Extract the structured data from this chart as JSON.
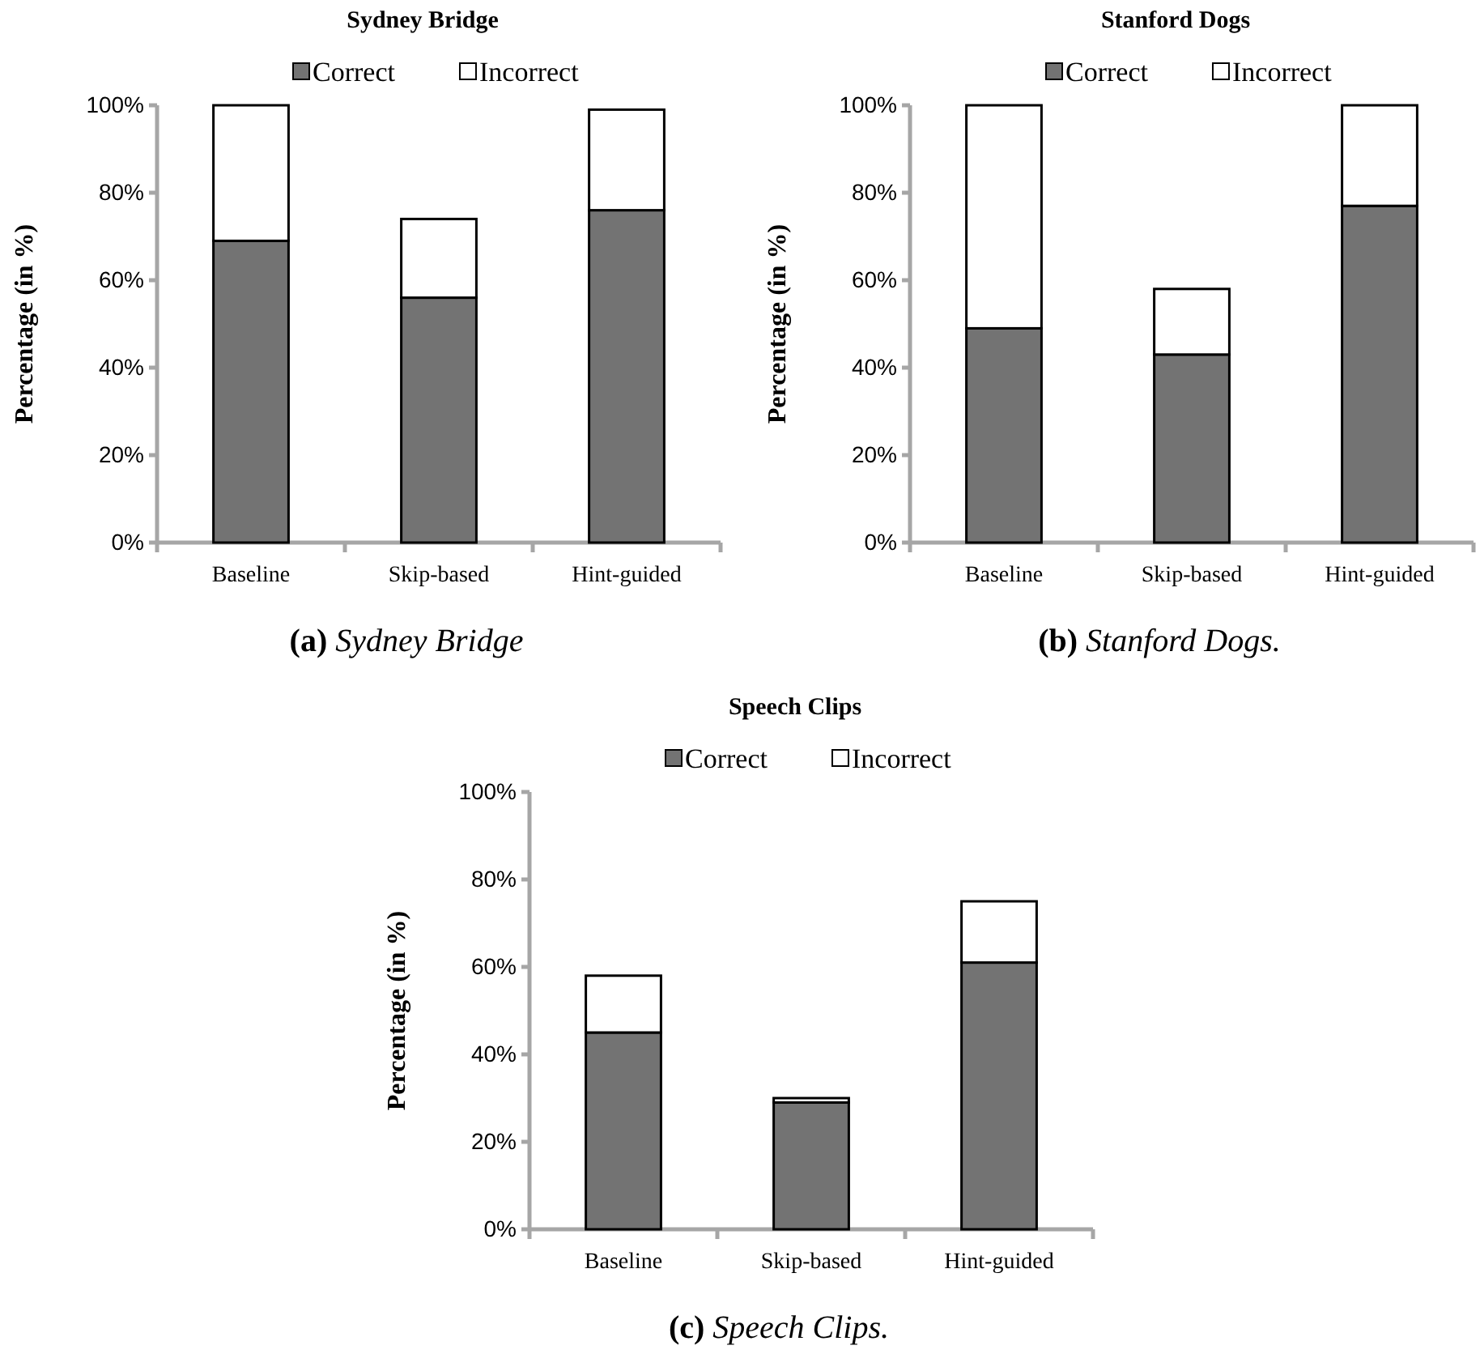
{
  "chart_data": [
    {
      "type": "bar",
      "title": "Sydney Bridge",
      "ylabel": "Percentage (in %)",
      "categories": [
        "Baseline",
        "Skip-based",
        "Hint-guided"
      ],
      "stacked": true,
      "legend": "top",
      "ylim": [
        0,
        100
      ],
      "yticks": [
        {
          "value": 0,
          "label": "0%"
        },
        {
          "value": 20,
          "label": "20%"
        },
        {
          "value": 40,
          "label": "40%"
        },
        {
          "value": 60,
          "label": "60%"
        },
        {
          "value": 80,
          "label": "80%"
        },
        {
          "value": 100,
          "label": "100%"
        }
      ],
      "series": [
        {
          "name": "Correct",
          "color": "#737373",
          "values": [
            69,
            56,
            76
          ]
        },
        {
          "name": "Incorrect",
          "color": "#ffffff",
          "values": [
            31,
            18,
            23
          ]
        }
      ],
      "annotations": [
        "(a) Sydney Bridge"
      ]
    },
    {
      "type": "bar",
      "title": "Stanford Dogs",
      "ylabel": "Percentage (in %)",
      "categories": [
        "Baseline",
        "Skip-based",
        "Hint-guided"
      ],
      "stacked": true,
      "legend": "top",
      "ylim": [
        0,
        100
      ],
      "yticks": [
        {
          "value": 0,
          "label": "0%"
        },
        {
          "value": 20,
          "label": "20%"
        },
        {
          "value": 40,
          "label": "40%"
        },
        {
          "value": 60,
          "label": "60%"
        },
        {
          "value": 80,
          "label": "80%"
        },
        {
          "value": 100,
          "label": "100%"
        }
      ],
      "series": [
        {
          "name": "Correct",
          "color": "#737373",
          "values": [
            49,
            43,
            77
          ]
        },
        {
          "name": "Incorrect",
          "color": "#ffffff",
          "values": [
            51,
            15,
            23
          ]
        }
      ],
      "annotations": [
        "(b) Stanford Dogs."
      ]
    },
    {
      "type": "bar",
      "title": "Speech Clips",
      "ylabel": "Percentage (in %)",
      "categories": [
        "Baseline",
        "Skip-based",
        "Hint-guided"
      ],
      "stacked": true,
      "legend": "top",
      "ylim": [
        0,
        100
      ],
      "yticks": [
        {
          "value": 0,
          "label": "0%"
        },
        {
          "value": 20,
          "label": "20%"
        },
        {
          "value": 40,
          "label": "40%"
        },
        {
          "value": 60,
          "label": "60%"
        },
        {
          "value": 80,
          "label": "80%"
        },
        {
          "value": 100,
          "label": "100%"
        }
      ],
      "series": [
        {
          "name": "Correct",
          "color": "#737373",
          "values": [
            45,
            29,
            61
          ]
        },
        {
          "name": "Incorrect",
          "color": "#ffffff",
          "values": [
            13,
            1,
            14
          ]
        }
      ],
      "annotations": [
        "(c) Speech Clips."
      ]
    }
  ]
}
